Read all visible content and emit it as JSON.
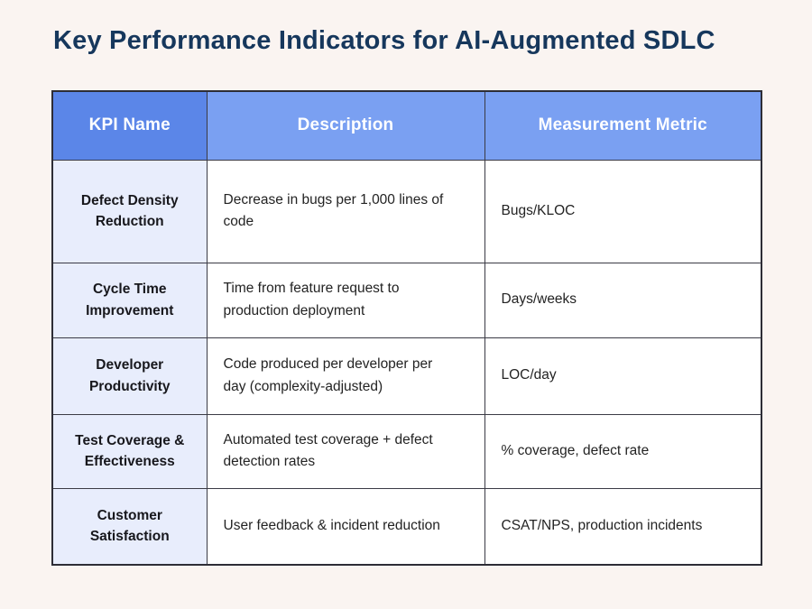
{
  "page": {
    "title": "Key Performance Indicators for AI-Augmented SDLC",
    "background_color": "#faf4f1",
    "title_color": "#16375c"
  },
  "table": {
    "headers": [
      "KPI Name",
      "Description",
      "Measurement Metric"
    ],
    "colors": {
      "header_kpi_column_bg": "#5b86e8",
      "header_other_columns_bg": "#7aa0f2",
      "header_text": "#ffffff",
      "kpi_column_bg": "#e8edfc",
      "body_bg": "#ffffff",
      "border": "#3b3b45"
    },
    "rows": [
      {
        "kpi": "Defect Density Reduction",
        "description": "Decrease in bugs per 1,000 lines of code",
        "metric": "Bugs/KLOC"
      },
      {
        "kpi": "Cycle Time Improvement",
        "description": "Time from feature request to production deployment",
        "metric": "Days/weeks"
      },
      {
        "kpi": "Developer Productivity",
        "description": "Code produced per developer per day (complexity-adjusted)",
        "metric": "LOC/day"
      },
      {
        "kpi": "Test Coverage & Effectiveness",
        "description": "Automated test coverage + defect detection rates",
        "metric": "% coverage, defect rate"
      },
      {
        "kpi": "Customer Satisfaction",
        "description": "User feedback & incident reduction",
        "metric": "CSAT/NPS, production incidents"
      }
    ]
  }
}
